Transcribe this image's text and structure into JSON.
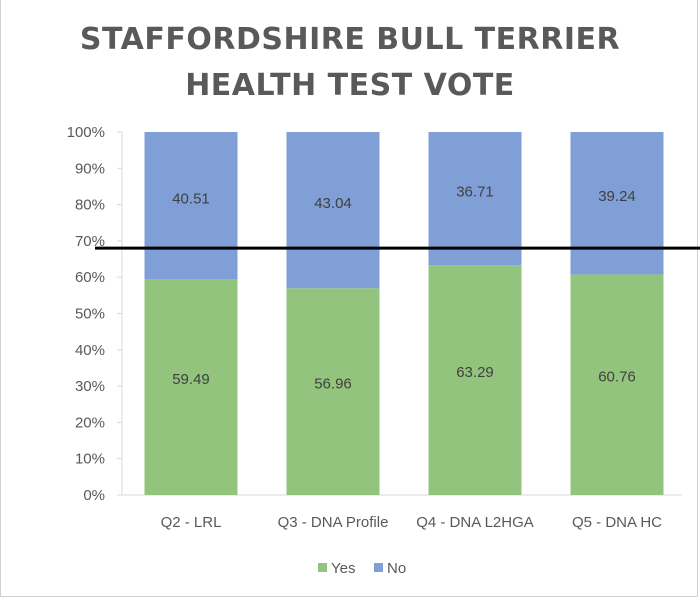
{
  "chart_data": {
    "type": "bar",
    "stacked": true,
    "title_lines": [
      "STAFFORDSHIRE BULL TERRIER",
      "HEALTH TEST VOTE"
    ],
    "categories": [
      "Q2 - LRL",
      "Q3 - DNA Profile",
      "Q4 - DNA L2HGA",
      "Q5 - DNA HC"
    ],
    "series": [
      {
        "name": "Yes",
        "color": "#93c47d",
        "values": [
          59.49,
          56.96,
          63.29,
          60.76
        ]
      },
      {
        "name": "No",
        "color": "#7f9fd6",
        "values": [
          40.51,
          43.04,
          36.71,
          39.24
        ]
      }
    ],
    "ylim": [
      0,
      100
    ],
    "yticks": [
      "0%",
      "10%",
      "20%",
      "30%",
      "40%",
      "50%",
      "60%",
      "70%",
      "80%",
      "90%",
      "100%"
    ],
    "reference_line": 68,
    "legend_position": "bottom",
    "grid": false
  }
}
